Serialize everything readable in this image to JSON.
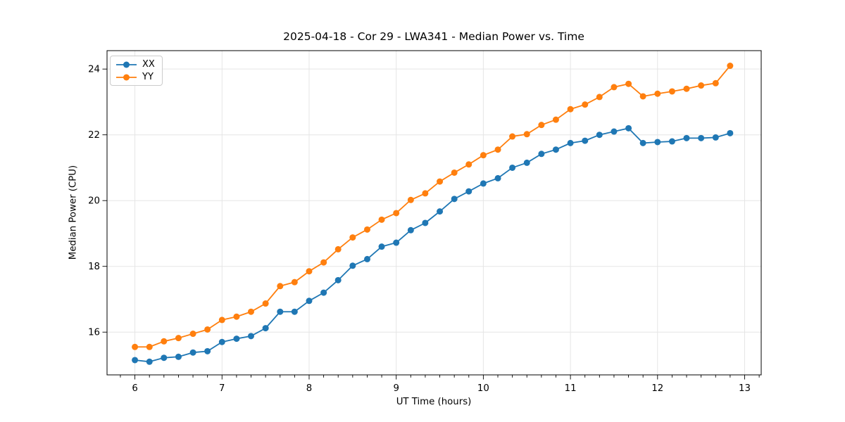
{
  "chart_data": {
    "type": "line",
    "title": "2025-04-18 - Cor 29 - LWA341 - Median Power vs. Time",
    "xlabel": "UT Time (hours)",
    "ylabel": "Median Power (CPU)",
    "xlim": [
      5.68,
      13.19
    ],
    "ylim": [
      14.7,
      24.56
    ],
    "xticks": [
      6,
      7,
      8,
      9,
      10,
      11,
      12,
      13
    ],
    "xticklabels": [
      "6",
      "7",
      "8",
      "9",
      "10",
      "11",
      "12",
      "13"
    ],
    "x_minor_step_hours": 0.1667,
    "yticks": [
      16,
      18,
      20,
      22,
      24
    ],
    "yticklabels": [
      "16",
      "18",
      "20",
      "22",
      "24"
    ],
    "grid": "major-both",
    "legend_position": "upper-left",
    "colors": {
      "grid": "#e5e5e5",
      "spine": "#000000",
      "background": "#ffffff"
    },
    "x": [
      6.0,
      6.167,
      6.333,
      6.5,
      6.667,
      6.833,
      7.0,
      7.167,
      7.333,
      7.5,
      7.667,
      7.833,
      8.0,
      8.167,
      8.333,
      8.5,
      8.667,
      8.833,
      9.0,
      9.167,
      9.333,
      9.5,
      9.667,
      9.833,
      10.0,
      10.167,
      10.333,
      10.5,
      10.667,
      10.833,
      11.0,
      11.167,
      11.333,
      11.5,
      11.667,
      11.833,
      12.0,
      12.167,
      12.333,
      12.5,
      12.667,
      12.833
    ],
    "series": [
      {
        "name": "XX",
        "color": "#1f77b4",
        "values": [
          15.15,
          15.1,
          15.22,
          15.25,
          15.38,
          15.42,
          15.7,
          15.8,
          15.88,
          16.12,
          16.62,
          16.62,
          16.95,
          17.2,
          17.58,
          18.02,
          18.22,
          18.6,
          18.72,
          19.1,
          19.32,
          19.67,
          20.05,
          20.28,
          20.52,
          20.68,
          21.0,
          21.15,
          21.42,
          21.55,
          21.75,
          21.82,
          22.0,
          22.1,
          22.2,
          21.75,
          21.78,
          21.8,
          21.9,
          21.9,
          21.92,
          22.05
        ]
      },
      {
        "name": "YY",
        "color": "#ff7f0e",
        "values": [
          15.55,
          15.55,
          15.72,
          15.82,
          15.95,
          16.08,
          16.37,
          16.47,
          16.62,
          16.87,
          17.4,
          17.52,
          17.85,
          18.12,
          18.52,
          18.88,
          19.12,
          19.42,
          19.62,
          20.02,
          20.22,
          20.58,
          20.85,
          21.1,
          21.38,
          21.55,
          21.95,
          22.02,
          22.3,
          22.46,
          22.78,
          22.92,
          23.15,
          23.45,
          23.55,
          23.17,
          23.25,
          23.32,
          23.4,
          23.5,
          23.57,
          24.1
        ]
      }
    ]
  }
}
